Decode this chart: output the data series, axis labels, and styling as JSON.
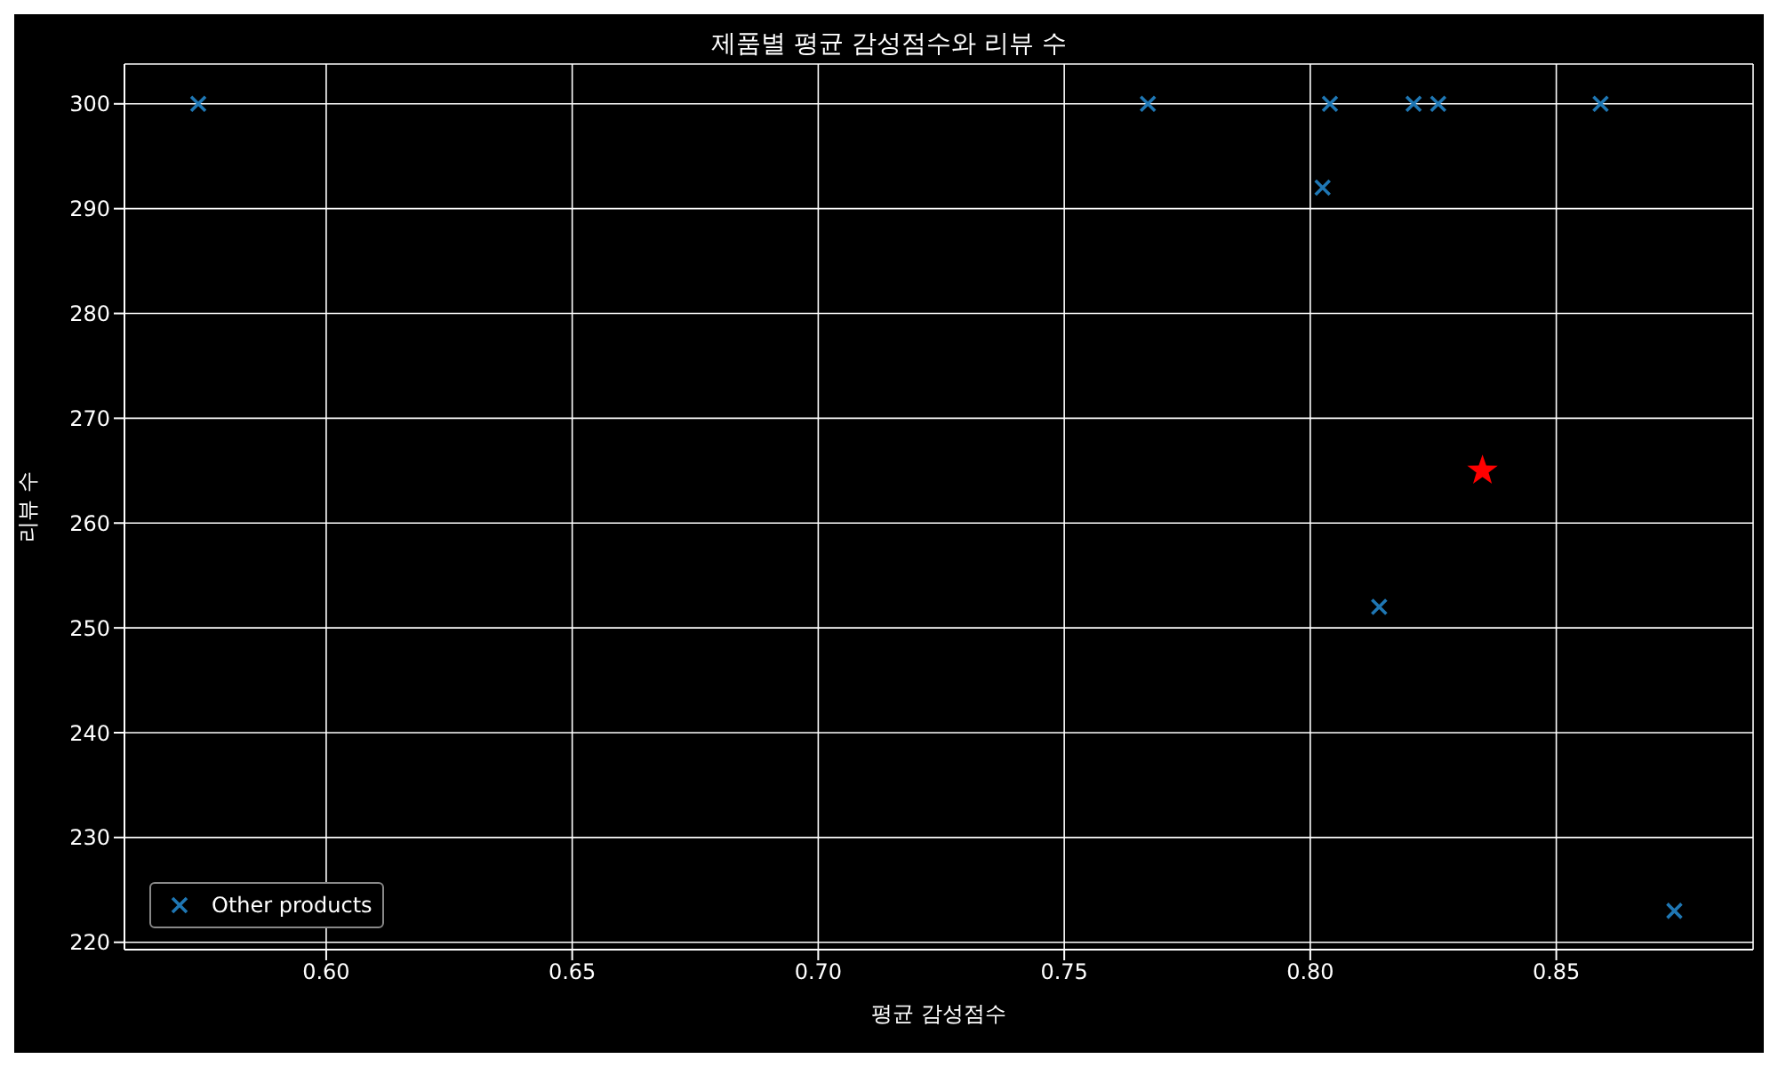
{
  "chart_data": {
    "type": "scatter",
    "title": "제품별 평균 감성점수와 리뷰 수",
    "xlabel": "평균 감성점수",
    "ylabel": "리뷰 수",
    "series": [
      {
        "name": "Other products",
        "color": "#1f77b4",
        "marker": "cross",
        "x": [
          0.574,
          0.767,
          0.804,
          0.8025,
          0.821,
          0.826,
          0.859,
          0.814,
          0.874
        ],
        "values": [
          300,
          300,
          300,
          292,
          300,
          300,
          300,
          252,
          223
        ]
      },
      {
        "color": "#ff0000",
        "marker": "star",
        "x": [
          0.835
        ],
        "values": [
          265
        ]
      }
    ],
    "xlim": [
      0.559,
      0.89
    ],
    "xticks": [
      {
        "value": 0.6,
        "label": "0.60"
      },
      {
        "value": 0.65,
        "label": "0.65"
      },
      {
        "value": 0.7,
        "label": "0.70"
      },
      {
        "value": 0.75,
        "label": "0.75"
      },
      {
        "value": 0.8,
        "label": "0.80"
      },
      {
        "value": 0.85,
        "label": "0.85"
      }
    ],
    "ylim": [
      219.3,
      303.8
    ],
    "yticks": [
      220,
      230,
      240,
      250,
      260,
      270,
      280,
      290,
      300
    ],
    "grid": true,
    "legend": "bottom left"
  }
}
